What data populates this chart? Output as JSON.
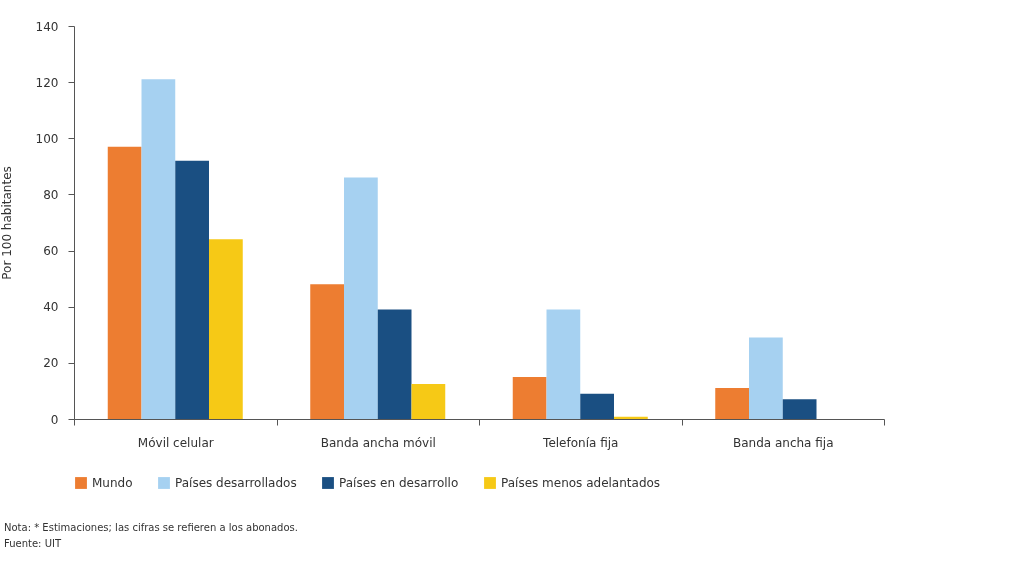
{
  "chart_data": {
    "type": "bar",
    "ylabel": "Por 100 habitantes",
    "categories": [
      "Móvil celular",
      "Banda ancha móvil",
      "Telefonía fija",
      "Banda ancha fija"
    ],
    "series": [
      {
        "name": "Mundo",
        "color": "#ed7d31",
        "values": [
          97,
          48,
          15,
          11
        ]
      },
      {
        "name": "Países desarrollados",
        "color": "#a6d1f1",
        "values": [
          121,
          86,
          39,
          29
        ]
      },
      {
        "name": "Países en desarrollo",
        "color": "#1a4f82",
        "values": [
          92,
          39,
          9,
          7
        ]
      },
      {
        "name": "Países menos adelantados",
        "color": "#f6c916",
        "values": [
          64,
          12.5,
          0.8,
          null
        ]
      }
    ],
    "ylim": [
      0,
      140
    ],
    "yticks": [
      0,
      20,
      40,
      60,
      80,
      100,
      120,
      140
    ],
    "grid": false,
    "legend": "bottom",
    "annotations": [
      "Nota: * Estimaciones; las cifras se refieren a los abonados.",
      "Fuente: UIT"
    ]
  }
}
